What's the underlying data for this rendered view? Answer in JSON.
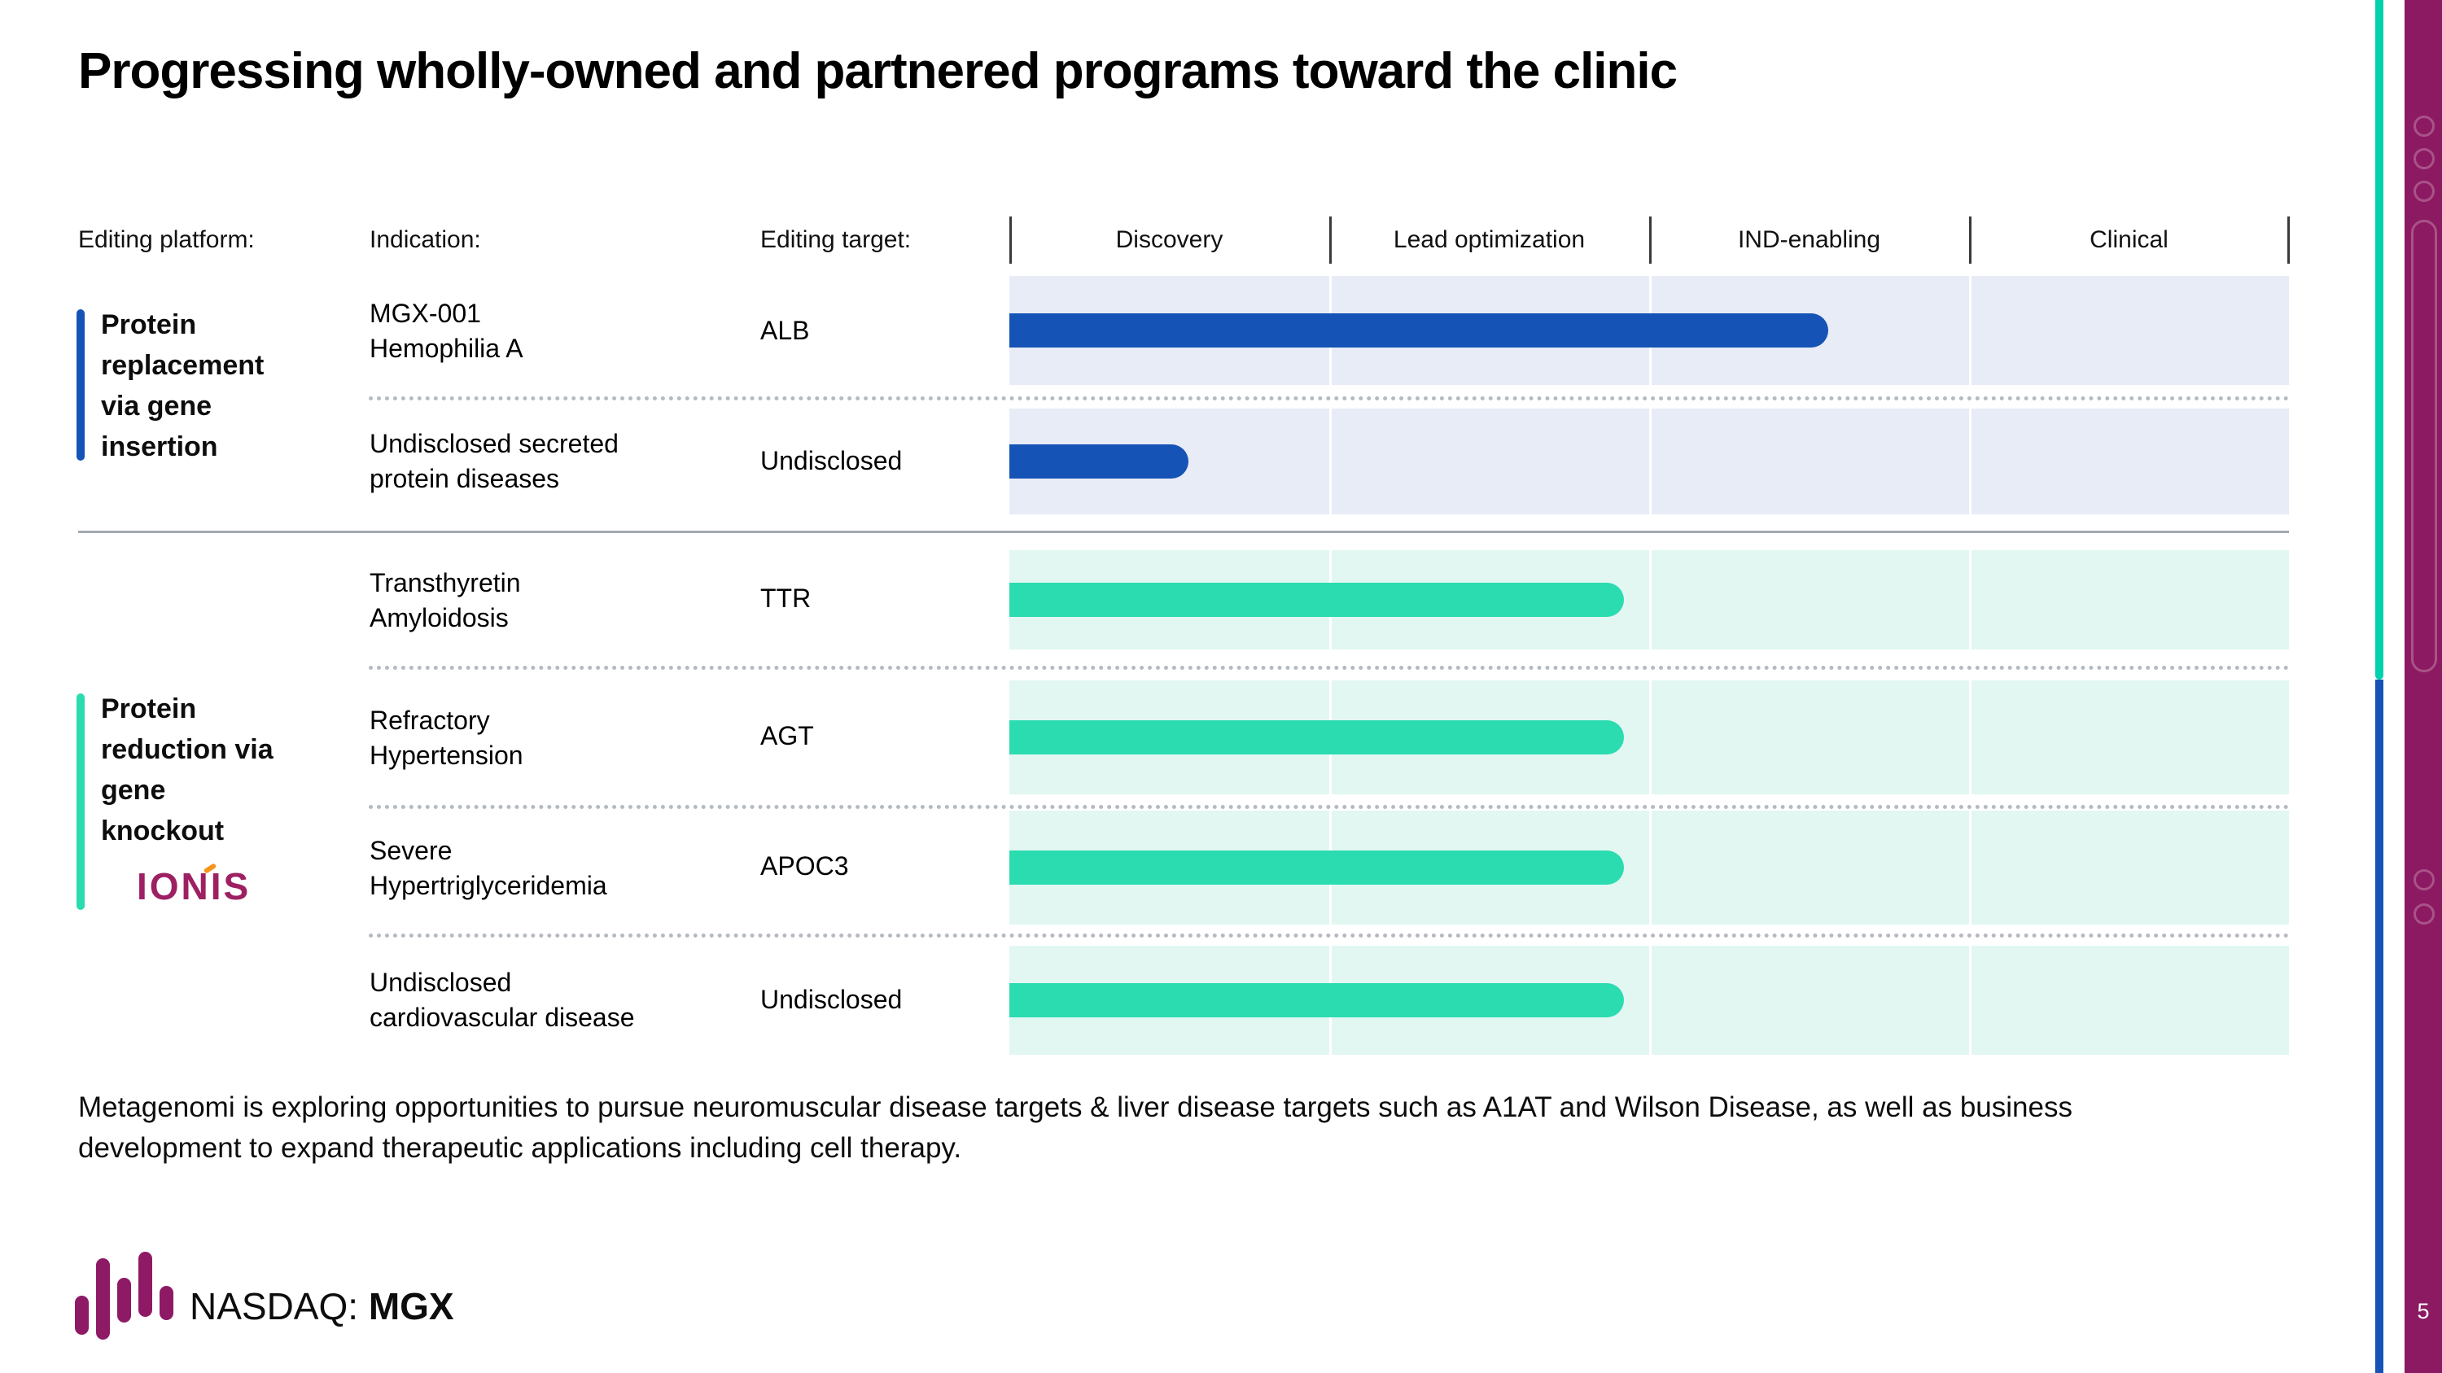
{
  "slide": {
    "title": "Progressing wholly-owned and partnered programs toward the clinic",
    "page_number": "5",
    "footer": "Metagenomi is exploring opportunities to pursue neuromuscular disease targets & liver disease targets such as A1AT and Wilson Disease, as well as business development to expand therapeutic applications including cell therapy.",
    "nasdaq_prefix": "NASDAQ: ",
    "ticker": "MGX"
  },
  "pipeline": {
    "headers": {
      "platform": "Editing platform:",
      "indication": "Indication:",
      "target": "Editing target:"
    },
    "phases": [
      "Discovery",
      "Lead optimization",
      "IND-enabling",
      "Clinical"
    ],
    "groups": [
      {
        "name": "Protein replacement via gene insertion",
        "accent_color": "#1553b7",
        "row_color": "#e8ecf6",
        "rows": [
          {
            "indication_line1": "MGX-001",
            "indication_line2": "Hemophilia A",
            "target": "ALB",
            "progress": 0.64
          },
          {
            "indication_line1": "Undisclosed secreted",
            "indication_line2": "protein diseases",
            "target": "Undisclosed",
            "progress": 0.14
          }
        ]
      },
      {
        "name": "Protein reduction via gene knockout",
        "partner": "IONIS",
        "accent_color": "#2adcb0",
        "row_color": "#e2f7f2",
        "rows": [
          {
            "indication_line1": "Transthyretin",
            "indication_line2": "Amyloidosis",
            "target": "TTR",
            "progress": 0.48
          },
          {
            "indication_line1": "Refractory",
            "indication_line2": "Hypertension",
            "target": "AGT",
            "progress": 0.48
          },
          {
            "indication_line1": "Severe",
            "indication_line2": "Hypertriglyceridemia",
            "target": "APOC3",
            "progress": 0.48
          },
          {
            "indication_line1": "Undisclosed",
            "indication_line2": "cardiovascular disease",
            "target": "Undisclosed",
            "progress": 0.48
          }
        ]
      }
    ]
  },
  "colors": {
    "bar_blue": "#1553b7",
    "bar_teal": "#2adcb0",
    "row_blue": "#e8ecf6",
    "row_teal": "#e2f7f2",
    "strip_magenta": "#8c1a63",
    "logo_magenta": "#8e1a66",
    "ionis_magenta": "#9d2063",
    "ionis_orange": "#f7941d"
  }
}
